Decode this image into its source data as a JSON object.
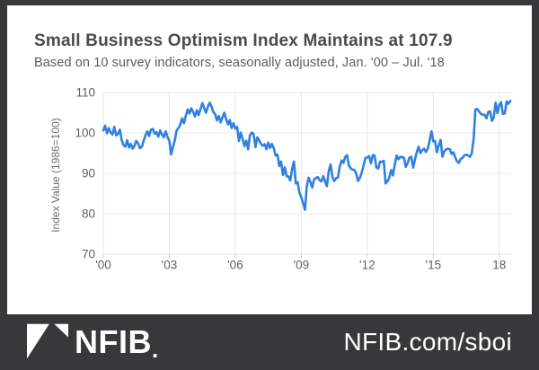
{
  "header": {
    "title": "Small Business Optimism Index Maintains at 107.9",
    "subtitle": "Based on 10 survey indicators, seasonally adjusted, Jan. '00 – Jul. '18"
  },
  "chart_data": {
    "type": "line",
    "title": "Small Business Optimism Index Maintains at 107.9",
    "xlabel": "",
    "ylabel": "Index Value (1986=100)",
    "ylim": [
      70,
      110
    ],
    "y_ticks": [
      70,
      80,
      90,
      100,
      110
    ],
    "x_tick_labels": [
      "'00",
      "'03",
      "'06",
      "'09",
      "'12",
      "'15",
      "18"
    ],
    "x_tick_months": [
      0,
      36,
      72,
      108,
      144,
      180,
      216
    ],
    "grid": true,
    "legend": false,
    "line_color": "#2f80e0",
    "grid_color": "#e8e8e8",
    "tick_color": "#cccccc",
    "axis_label_color": "#606060",
    "series": [
      {
        "name": "Small Business Optimism Index",
        "frequency": "monthly",
        "start": "2000-01",
        "end": "2018-07",
        "values": [
          100.6,
          101.8,
          99.9,
          101.2,
          100.1,
          99.6,
          101.5,
          99.4,
          99.7,
          100.8,
          98.3,
          97.0,
          96.6,
          98.2,
          96.4,
          97.3,
          96.1,
          96.8,
          98.0,
          97.4,
          96.2,
          96.6,
          98.0,
          99.4,
          100.4,
          99.2,
          100.8,
          101.0,
          99.8,
          100.2,
          99.1,
          100.6,
          99.6,
          98.9,
          100.4,
          99.0,
          98.1,
          94.7,
          96.4,
          98.2,
          100.6,
          101.2,
          102.1,
          103.6,
          102.4,
          104.2,
          105.8,
          104.8,
          106.1,
          105.2,
          104.1,
          105.6,
          104.4,
          105.8,
          107.4,
          106.2,
          105.0,
          106.4,
          107.5,
          106.6,
          105.2,
          104.6,
          103.1,
          104.2,
          102.6,
          103.8,
          105.0,
          103.4,
          102.1,
          103.2,
          101.2,
          102.4,
          101.1,
          101.5,
          98.0,
          100.1,
          98.5,
          96.7,
          98.1,
          95.9,
          99.4,
          100.1,
          99.7,
          96.5,
          98.9,
          98.2,
          97.3,
          96.8,
          97.2,
          96.0,
          97.6,
          96.3,
          97.3,
          96.2,
          94.4,
          94.6,
          91.8,
          92.9,
          89.6,
          91.5,
          89.3,
          89.2,
          88.2,
          91.1,
          92.9,
          87.5,
          87.8,
          85.2,
          84.1,
          82.6,
          81.0,
          86.8,
          88.9,
          87.8,
          86.5,
          88.6,
          88.8,
          89.1,
          88.3,
          88.0,
          89.3,
          88.0,
          86.8,
          90.6,
          92.2,
          89.0,
          88.1,
          88.8,
          89.0,
          91.7,
          93.2,
          92.6,
          94.1,
          94.5,
          91.9,
          91.2,
          90.9,
          90.8,
          89.9,
          88.1,
          88.9,
          90.2,
          92.0,
          93.8,
          93.9,
          94.3,
          92.5,
          94.5,
          94.4,
          91.4,
          91.2,
          92.9,
          92.8,
          93.1,
          87.5,
          88.0,
          88.9,
          90.8,
          89.5,
          92.1,
          94.4,
          93.5,
          94.1,
          94.0,
          93.9,
          91.6,
          92.5,
          93.9,
          94.1,
          91.4,
          93.4,
          95.2,
          96.6,
          95.0,
          95.7,
          96.1,
          95.3,
          96.1,
          98.1,
          100.4,
          97.9,
          98.0,
          95.2,
          96.9,
          98.3,
          94.1,
          95.4,
          95.9,
          96.1,
          96.0,
          94.8,
          95.2,
          93.9,
          92.9,
          92.6,
          93.6,
          93.8,
          94.5,
          94.6,
          94.4,
          94.1,
          94.9,
          98.4,
          105.8,
          105.9,
          105.3,
          104.7,
          104.5,
          104.5,
          103.6,
          105.2,
          105.3,
          103.0,
          103.8,
          107.5,
          104.9,
          106.9,
          107.6,
          104.7,
          104.8,
          107.8,
          107.2,
          107.9
        ]
      }
    ]
  },
  "footer": {
    "logo_text": "NFIB",
    "logo_suffix": ".",
    "link_text": "NFIB.com/sboi",
    "bg_color": "#38383a",
    "text_color": "#ffffff"
  }
}
